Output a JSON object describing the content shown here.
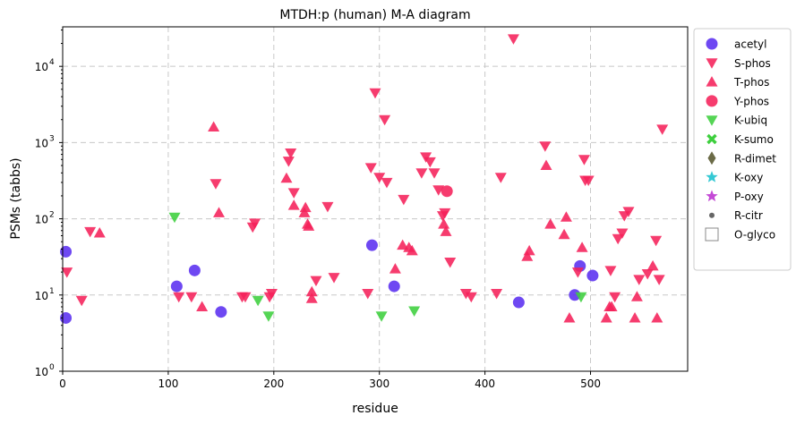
{
  "chart_data": {
    "type": "scatter",
    "title": "MTDH:p (human) M-A diagram",
    "xlabel": "residue",
    "ylabel": "PSMs (tabbs)",
    "xlim": [
      0,
      592
    ],
    "ylim": [
      1,
      33000
    ],
    "yscale": "log",
    "grid": true,
    "legend_position": "outside right",
    "x_ticks": [
      0,
      100,
      200,
      300,
      400,
      500
    ],
    "y_ticks": [
      {
        "value": 1,
        "label": "10"
      },
      {
        "value": 10,
        "label": "10"
      },
      {
        "value": 100,
        "label": "10"
      },
      {
        "value": 1000,
        "label": "10"
      },
      {
        "value": 10000,
        "label": "10"
      }
    ],
    "y_tick_exponents": [
      "0",
      "1",
      "2",
      "3",
      "4"
    ],
    "series": [
      {
        "name": "acetyl",
        "marker": "circle",
        "color": "#5a2ff0",
        "points": [
          [
            3,
            37
          ],
          [
            3,
            5
          ],
          [
            108,
            13
          ],
          [
            125,
            21
          ],
          [
            150,
            6
          ],
          [
            293,
            45
          ],
          [
            314,
            13
          ],
          [
            432,
            8
          ],
          [
            490,
            24
          ],
          [
            485,
            10
          ],
          [
            502,
            18
          ]
        ]
      },
      {
        "name": "S-phos",
        "marker": "triangle-down",
        "color": "#f5215a",
        "points": [
          [
            4,
            20
          ],
          [
            18,
            8.5
          ],
          [
            26,
            68
          ],
          [
            110,
            9.5
          ],
          [
            122,
            9.5
          ],
          [
            145,
            290
          ],
          [
            170,
            9.5
          ],
          [
            173,
            9.5
          ],
          [
            180,
            78
          ],
          [
            182,
            88
          ],
          [
            196,
            9.5
          ],
          [
            198,
            10.5
          ],
          [
            214,
            570
          ],
          [
            216,
            730
          ],
          [
            219,
            220
          ],
          [
            240,
            15.5
          ],
          [
            251,
            145
          ],
          [
            257,
            17
          ],
          [
            289,
            10.5
          ],
          [
            292,
            470
          ],
          [
            296,
            4500
          ],
          [
            300,
            350
          ],
          [
            305,
            2000
          ],
          [
            307,
            300
          ],
          [
            323,
            180
          ],
          [
            340,
            400
          ],
          [
            344,
            650
          ],
          [
            348,
            560
          ],
          [
            352,
            400
          ],
          [
            356,
            240
          ],
          [
            360,
            110
          ],
          [
            362,
            120
          ],
          [
            367,
            27
          ],
          [
            382,
            10.5
          ],
          [
            387,
            9.5
          ],
          [
            411,
            10.5
          ],
          [
            415,
            350
          ],
          [
            427,
            23000
          ],
          [
            457,
            900
          ],
          [
            488,
            20
          ],
          [
            494,
            600
          ],
          [
            495,
            320
          ],
          [
            498,
            320
          ],
          [
            519,
            21
          ],
          [
            523,
            9.5
          ],
          [
            526,
            55
          ],
          [
            530,
            65
          ],
          [
            532,
            110
          ],
          [
            536,
            125
          ],
          [
            546,
            16
          ],
          [
            554,
            19
          ],
          [
            562,
            52
          ],
          [
            565,
            16
          ],
          [
            568,
            1500
          ]
        ]
      },
      {
        "name": "T-phos",
        "marker": "triangle-up",
        "color": "#f5215a",
        "points": [
          [
            35,
            65
          ],
          [
            132,
            7
          ],
          [
            143,
            1600
          ],
          [
            148,
            120
          ],
          [
            212,
            340
          ],
          [
            219,
            150
          ],
          [
            229,
            120
          ],
          [
            230,
            140
          ],
          [
            232,
            85
          ],
          [
            233,
            80
          ],
          [
            236,
            11
          ],
          [
            236,
            9
          ],
          [
            315,
            22
          ],
          [
            322,
            45
          ],
          [
            328,
            42
          ],
          [
            331,
            38
          ],
          [
            361,
            85
          ],
          [
            363,
            68
          ],
          [
            440,
            32
          ],
          [
            442,
            38
          ],
          [
            458,
            500
          ],
          [
            462,
            85
          ],
          [
            475,
            62
          ],
          [
            477,
            105
          ],
          [
            480,
            5
          ],
          [
            492,
            42
          ],
          [
            515,
            5
          ],
          [
            518,
            7
          ],
          [
            520,
            7
          ],
          [
            542,
            5
          ],
          [
            544,
            9.5
          ],
          [
            559,
            24
          ],
          [
            563,
            5
          ]
        ]
      },
      {
        "name": "Y-phos",
        "marker": "circle",
        "color": "#f5215a",
        "points": [
          [
            364,
            230
          ]
        ]
      },
      {
        "name": "K-ubiq",
        "marker": "triangle-down",
        "color": "#3ecf3e",
        "points": [
          [
            106,
            105
          ],
          [
            185,
            8.5
          ],
          [
            195,
            5.3
          ],
          [
            302,
            5.3
          ],
          [
            333,
            6.2
          ],
          [
            491,
            9.5
          ]
        ]
      },
      {
        "name": "K-sumo",
        "marker": "x",
        "color": "#3ecf3e",
        "points": []
      },
      {
        "name": "R-dimet",
        "marker": "diamond",
        "color": "#6b6b47",
        "points": []
      },
      {
        "name": "K-oxy",
        "marker": "star",
        "color": "#36c9d4",
        "points": []
      },
      {
        "name": "P-oxy",
        "marker": "star",
        "color": "#c44ad6",
        "points": []
      },
      {
        "name": "R-citr",
        "marker": "small-circle",
        "color": "#666666",
        "points": []
      },
      {
        "name": "O-glyco",
        "marker": "open-square",
        "color": "#888888",
        "points": []
      }
    ]
  }
}
